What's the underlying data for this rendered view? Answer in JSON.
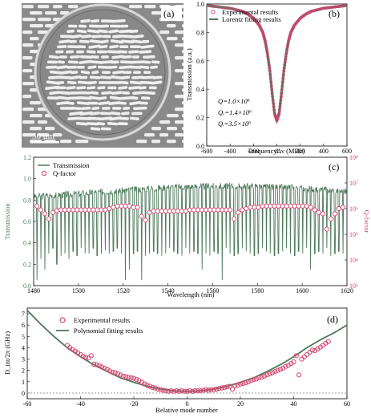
{
  "panel_a": {
    "label": "(a)",
    "scalebar_text": "50 μm",
    "colors": {
      "background": "#8a8a8a",
      "ring": "#d8d8d8",
      "holes": "#eeeeee"
    }
  },
  "chart_data": [
    {
      "id": "b",
      "type": "line",
      "panel_label": "(b)",
      "xlabel": "FrequencyΔν (MHz)",
      "ylabel": "Transmission (a.u.)",
      "xlim": [
        -600,
        600
      ],
      "ylim": [
        0.0,
        1.0
      ],
      "xticks": [
        -600,
        -400,
        -200,
        0,
        200,
        400,
        600
      ],
      "yticks": [
        0.0,
        0.2,
        0.4,
        0.6,
        0.8,
        1.0
      ],
      "legend_position": "top-left",
      "series": [
        {
          "name": "Experimental results",
          "style": "markers",
          "color": "#d4446f",
          "x": [
            -600,
            -500,
            -400,
            -300,
            -250,
            -200,
            -150,
            -120,
            -100,
            -80,
            -60,
            -40,
            -20,
            0,
            20,
            40,
            60,
            80,
            100,
            120,
            150,
            200,
            250,
            300,
            400,
            500,
            600
          ],
          "y": [
            0.99,
            0.98,
            0.97,
            0.95,
            0.93,
            0.9,
            0.85,
            0.8,
            0.74,
            0.65,
            0.53,
            0.37,
            0.23,
            0.18,
            0.23,
            0.37,
            0.53,
            0.65,
            0.74,
            0.8,
            0.85,
            0.9,
            0.93,
            0.95,
            0.97,
            0.98,
            0.99
          ]
        },
        {
          "name": "Lorentz fitting results",
          "style": "line",
          "color": "#4f7a5c",
          "x": [
            -600,
            -500,
            -400,
            -300,
            -250,
            -200,
            -150,
            -120,
            -100,
            -80,
            -60,
            -40,
            -20,
            0,
            20,
            40,
            60,
            80,
            100,
            120,
            150,
            200,
            250,
            300,
            400,
            500,
            600
          ],
          "y": [
            0.99,
            0.98,
            0.97,
            0.95,
            0.93,
            0.9,
            0.85,
            0.8,
            0.74,
            0.65,
            0.53,
            0.37,
            0.23,
            0.18,
            0.23,
            0.37,
            0.53,
            0.65,
            0.74,
            0.8,
            0.85,
            0.9,
            0.93,
            0.95,
            0.97,
            0.98,
            0.99
          ]
        }
      ],
      "annotations": [
        "Q=1.0×10⁶",
        "Qₑ=1.4×10⁶",
        "Qᵢ=3.5×10⁶"
      ]
    },
    {
      "id": "c",
      "type": "line",
      "panel_label": "(c)",
      "xlabel": "Wavelength (nm)",
      "ylabel": "Transmission",
      "ylabel_right": "Q-factor",
      "xlim": [
        1480,
        1620
      ],
      "ylim": [
        0.0,
        1.2
      ],
      "ylim_right_log10": [
        3,
        8
      ],
      "xticks": [
        1480,
        1500,
        1520,
        1540,
        1560,
        1580,
        1600,
        1620
      ],
      "yticks": [
        0.0,
        0.2,
        0.4,
        0.6,
        0.8,
        1.0,
        1.2
      ],
      "yticks_right": [
        "10³",
        "10⁴",
        "10⁵",
        "10⁶",
        "10⁷",
        "10⁸"
      ],
      "legend_position": "top-left",
      "series": [
        {
          "name": "Transmission",
          "style": "line",
          "color": "#4f7a5c",
          "baseline": [
            [
              1480,
              0.83
            ],
            [
              1500,
              0.86
            ],
            [
              1520,
              0.89
            ],
            [
              1540,
              0.92
            ],
            [
              1560,
              0.93
            ],
            [
              1580,
              0.93
            ],
            [
              1600,
              0.91
            ],
            [
              1620,
              0.88
            ]
          ],
          "dips": [
            1481.5,
            1483.2,
            1485.0,
            1486.8,
            1488.6,
            1490.4,
            1492.2,
            1494.0,
            1495.8,
            1497.6,
            1499.4,
            1501.2,
            1503.0,
            1504.8,
            1506.6,
            1508.4,
            1510.2,
            1512.0,
            1513.8,
            1515.6,
            1517.4,
            1519.2,
            1521.0,
            1522.8,
            1524.6,
            1526.4,
            1528.2,
            1530.0,
            1531.8,
            1533.6,
            1535.4,
            1537.2,
            1539.0,
            1540.8,
            1542.6,
            1544.4,
            1546.2,
            1548.0,
            1549.8,
            1551.6,
            1553.4,
            1555.2,
            1557.0,
            1558.8,
            1560.6,
            1562.4,
            1564.2,
            1566.0,
            1567.8,
            1569.6,
            1571.4,
            1573.2,
            1575.0,
            1576.8,
            1578.6,
            1580.4,
            1582.2,
            1584.0,
            1585.8,
            1587.6,
            1589.4,
            1591.2,
            1593.0,
            1594.8,
            1596.6,
            1598.4,
            1600.2,
            1602.0,
            1603.8,
            1605.6,
            1607.4,
            1609.2,
            1611.0,
            1612.8,
            1614.6,
            1616.4,
            1618.2
          ]
        },
        {
          "name": "Q-factor",
          "style": "markers",
          "color": "#d4446f",
          "x": [
            1481.5,
            1483.2,
            1485.0,
            1486.8,
            1488.6,
            1490.4,
            1492.2,
            1494.0,
            1495.8,
            1497.6,
            1499.4,
            1501.2,
            1503.0,
            1504.8,
            1506.6,
            1508.4,
            1510.2,
            1512.0,
            1513.8,
            1515.6,
            1517.4,
            1519.2,
            1521.0,
            1522.8,
            1524.6,
            1526.4,
            1528.2,
            1530.0,
            1531.8,
            1533.6,
            1535.4,
            1537.2,
            1539.0,
            1540.8,
            1542.6,
            1544.4,
            1546.2,
            1548.0,
            1549.8,
            1551.6,
            1553.4,
            1555.2,
            1557.0,
            1558.8,
            1560.6,
            1562.4,
            1564.2,
            1566.0,
            1567.8,
            1569.6,
            1571.4,
            1573.2,
            1575.0,
            1576.8,
            1578.6,
            1580.4,
            1582.2,
            1584.0,
            1585.8,
            1587.6,
            1589.4,
            1591.2,
            1593.0,
            1594.8,
            1596.6,
            1598.4,
            1600.2,
            1602.0,
            1603.8,
            1605.6,
            1607.4,
            1609.2,
            1611.0,
            1612.8,
            1614.6,
            1616.4,
            1618.2
          ],
          "log10_q": [
            6.1,
            5.95,
            5.8,
            5.6,
            5.85,
            5.92,
            5.95,
            5.95,
            5.95,
            5.95,
            5.95,
            5.95,
            5.95,
            5.95,
            5.95,
            5.95,
            5.95,
            5.95,
            6.0,
            6.05,
            6.1,
            6.1,
            6.1,
            6.1,
            6.05,
            6.05,
            5.7,
            5.55,
            5.85,
            5.9,
            5.9,
            5.9,
            5.9,
            5.9,
            5.9,
            5.9,
            5.9,
            5.9,
            5.95,
            5.95,
            5.95,
            5.95,
            5.95,
            5.95,
            5.95,
            5.95,
            5.95,
            5.95,
            5.95,
            5.6,
            5.85,
            5.95,
            6.0,
            6.05,
            6.05,
            6.05,
            6.1,
            6.1,
            6.1,
            6.1,
            6.1,
            6.1,
            6.1,
            6.1,
            6.1,
            6.1,
            6.1,
            6.1,
            6.05,
            5.95,
            5.85,
            5.8,
            5.2,
            5.6,
            5.8,
            6.0,
            6.05
          ]
        }
      ]
    },
    {
      "id": "d",
      "type": "scatter",
      "panel_label": "(d)",
      "xlabel": "Relative mode number",
      "ylabel": "D_int/2π (GHz)",
      "xlim": [
        -60,
        60
      ],
      "ylim": [
        -0.5,
        7.5
      ],
      "xticks": [
        -60,
        -40,
        -20,
        0,
        20,
        40,
        60
      ],
      "yticks": [
        0,
        1,
        2,
        3,
        4,
        5,
        6,
        7
      ],
      "legend_position": "top-left",
      "series": [
        {
          "name": "Experimental results",
          "style": "markers",
          "color": "#d4446f",
          "x": [
            -45,
            -44,
            -43,
            -42,
            -41,
            -40,
            -39,
            -38,
            -37,
            -36,
            -35,
            -34,
            -33,
            -32,
            -31,
            -30,
            -29,
            -28,
            -27,
            -26,
            -25,
            -24,
            -23,
            -22,
            -21,
            -20,
            -19,
            -18,
            -17,
            -16,
            -15,
            -14,
            -13,
            -12,
            -11,
            -10,
            -9,
            -8,
            -7,
            -6,
            -5,
            -4,
            -3,
            -2,
            -1,
            0,
            1,
            2,
            3,
            4,
            5,
            6,
            7,
            8,
            9,
            10,
            11,
            12,
            13,
            14,
            15,
            16,
            17,
            18,
            19,
            20,
            21,
            22,
            23,
            24,
            25,
            26,
            27,
            28,
            29,
            30,
            31,
            32,
            33,
            34,
            35,
            36,
            37,
            38,
            39,
            40,
            41,
            42,
            43,
            44,
            45,
            46,
            47,
            48,
            49,
            50,
            51,
            52,
            53
          ],
          "y": [
            4.2,
            4.0,
            3.85,
            3.7,
            3.55,
            3.4,
            3.25,
            3.15,
            3.1,
            3.3,
            2.55,
            2.5,
            2.4,
            2.3,
            2.2,
            2.1,
            1.95,
            1.85,
            1.8,
            1.7,
            1.6,
            1.5,
            1.45,
            1.4,
            1.35,
            1.3,
            1.2,
            1.1,
            0.95,
            0.8,
            0.7,
            0.6,
            0.5,
            0.45,
            0.35,
            0.3,
            0.25,
            0.2,
            0.15,
            0.2,
            0.15,
            0.2,
            0.15,
            0.2,
            0.15,
            0.15,
            0.2,
            0.15,
            0.2,
            0.2,
            0.2,
            0.25,
            0.3,
            0.25,
            0.3,
            0.3,
            0.35,
            0.4,
            0.45,
            0.5,
            0.55,
            0.6,
            0.35,
            0.65,
            0.7,
            0.8,
            0.85,
            0.9,
            1.0,
            1.1,
            1.2,
            1.25,
            1.35,
            1.4,
            1.5,
            1.6,
            1.7,
            1.8,
            1.9,
            2.0,
            2.1,
            2.2,
            2.35,
            2.45,
            2.6,
            2.75,
            3.3,
            1.6,
            3.0,
            3.2,
            3.4,
            3.6,
            3.8,
            3.75,
            3.9,
            4.05,
            4.2,
            4.4,
            4.55
          ]
        },
        {
          "name": "Polynomial fitting results",
          "style": "line",
          "color": "#4f7a5c",
          "x": [
            -60,
            -55,
            -50,
            -45,
            -40,
            -35,
            -30,
            -25,
            -20,
            -15,
            -10,
            -5,
            0,
            5,
            10,
            15,
            20,
            25,
            30,
            35,
            40,
            45,
            50,
            55,
            60
          ],
          "y": [
            7.3,
            6.1,
            5.0,
            4.0,
            3.2,
            2.5,
            1.9,
            1.35,
            0.95,
            0.6,
            0.35,
            0.2,
            0.15,
            0.2,
            0.35,
            0.6,
            0.95,
            1.35,
            1.9,
            2.5,
            3.2,
            4.0,
            4.7,
            5.3,
            6.0
          ]
        }
      ],
      "reference_line_y": 0
    }
  ]
}
